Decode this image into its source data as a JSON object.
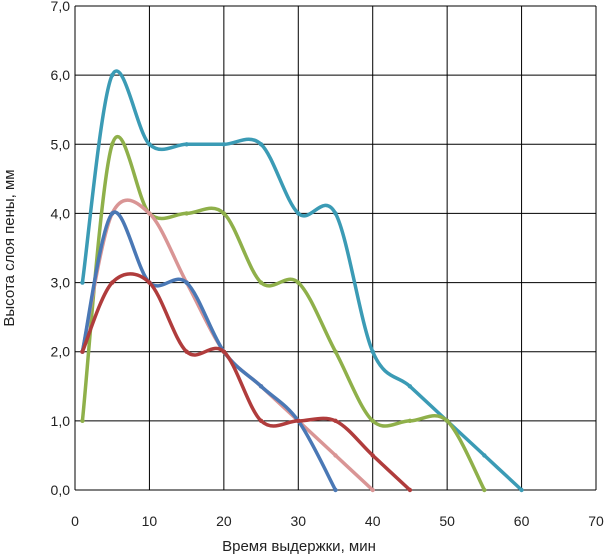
{
  "chart_data": {
    "type": "line",
    "xlabel": "Время выдержки, мин",
    "ylabel": "Высота слоя пены, мм",
    "xlim": [
      0,
      70
    ],
    "ylim": [
      0,
      7
    ],
    "x_ticks": [
      "0",
      "10",
      "20",
      "30",
      "40",
      "50",
      "60",
      "70"
    ],
    "y_ticks": [
      "0,0",
      "1,0",
      "2,0",
      "3,0",
      "4,0",
      "5,0",
      "6,0",
      "7,0"
    ],
    "grid": true,
    "legend": "none",
    "series": [
      {
        "color": "#3b9bb5",
        "points": [
          [
            1,
            3.0
          ],
          [
            5,
            6.0
          ],
          [
            10,
            5.0
          ],
          [
            15,
            5.0
          ],
          [
            20,
            5.0
          ],
          [
            25,
            5.0
          ],
          [
            30,
            4.0
          ],
          [
            35,
            4.0
          ],
          [
            40,
            2.0
          ],
          [
            45,
            1.5
          ],
          [
            50,
            1.0
          ],
          [
            55,
            0.5
          ],
          [
            60,
            0.0
          ]
        ]
      },
      {
        "color": "#8fb04a",
        "points": [
          [
            1,
            1.0
          ],
          [
            5,
            5.0
          ],
          [
            10,
            4.0
          ],
          [
            15,
            4.0
          ],
          [
            20,
            4.0
          ],
          [
            25,
            3.0
          ],
          [
            30,
            3.0
          ],
          [
            35,
            2.0
          ],
          [
            40,
            1.0
          ],
          [
            45,
            1.0
          ],
          [
            50,
            1.0
          ],
          [
            55,
            0.0
          ]
        ]
      },
      {
        "color": "#d99595",
        "points": [
          [
            1,
            2.0
          ],
          [
            5,
            4.0
          ],
          [
            10,
            4.0
          ],
          [
            15,
            3.0
          ],
          [
            20,
            2.0
          ],
          [
            25,
            1.5
          ],
          [
            30,
            1.0
          ],
          [
            35,
            0.5
          ],
          [
            40,
            0.0
          ]
        ]
      },
      {
        "color": "#4a78b5",
        "points": [
          [
            1,
            2.0
          ],
          [
            5,
            4.0
          ],
          [
            10,
            3.0
          ],
          [
            15,
            3.0
          ],
          [
            20,
            2.0
          ],
          [
            25,
            1.5
          ],
          [
            30,
            1.0
          ],
          [
            35,
            0.0
          ]
        ]
      },
      {
        "color": "#b03c3c",
        "points": [
          [
            1,
            2.0
          ],
          [
            5,
            3.0
          ],
          [
            10,
            3.0
          ],
          [
            15,
            2.0
          ],
          [
            20,
            2.0
          ],
          [
            25,
            1.0
          ],
          [
            30,
            1.0
          ],
          [
            35,
            1.0
          ],
          [
            40,
            0.5
          ],
          [
            45,
            0.0
          ]
        ]
      }
    ]
  }
}
